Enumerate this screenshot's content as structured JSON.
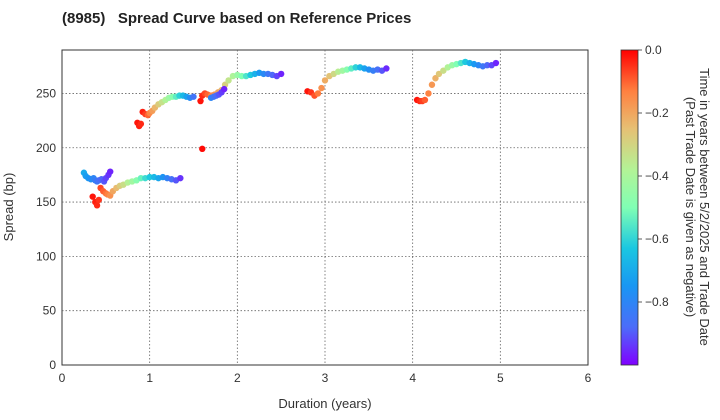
{
  "chart_data": {
    "type": "scatter",
    "title": "(8985)   Spread Curve based on Reference Prices",
    "xlabel": "Duration (years)",
    "ylabel": "Spread (bp)",
    "xlim": [
      0,
      6
    ],
    "ylim": [
      0,
      290
    ],
    "xticks": [
      "0",
      "1",
      "2",
      "3",
      "4",
      "5",
      "6"
    ],
    "yticks": [
      "0",
      "50",
      "100",
      "150",
      "200",
      "250"
    ],
    "grid": true,
    "colorbar": {
      "label_line1": "Time in years between 5/2/2025 and Trade Date",
      "label_line2": "(Past Trade Date is given as negative)",
      "range": [
        -1.0,
        0.0
      ],
      "ticks": [
        "0.0",
        "−0.2",
        "−0.4",
        "−0.6",
        "−0.8"
      ],
      "colormap": "rainbow"
    },
    "clusters": [
      {
        "x": [
          0.25,
          0.27,
          0.3,
          0.33,
          0.36,
          0.38,
          0.4,
          0.42,
          0.45,
          0.48,
          0.5,
          0.53,
          0.55
        ],
        "y": [
          177,
          174,
          172,
          171,
          172,
          170,
          169,
          170,
          171,
          169,
          172,
          175,
          178
        ],
        "c": [
          -0.7,
          -0.73,
          -0.75,
          -0.77,
          -0.8,
          -0.82,
          -0.84,
          -0.86,
          -0.88,
          -0.9,
          -0.92,
          -0.94,
          -0.96
        ]
      },
      {
        "x": [
          0.35,
          0.38,
          0.4,
          0.42,
          0.44,
          0.47,
          0.5,
          0.52,
          0.55,
          0.58,
          0.62,
          0.66,
          0.7,
          0.75,
          0.8,
          0.85,
          0.9,
          0.95,
          1.0,
          1.05,
          1.1,
          1.15,
          1.2,
          1.25,
          1.3,
          1.35
        ],
        "y": [
          155,
          150,
          147,
          152,
          163,
          160,
          158,
          157,
          156,
          160,
          163,
          165,
          166,
          168,
          169,
          170,
          172,
          172,
          173,
          173,
          172,
          173,
          172,
          171,
          170,
          172
        ],
        "c": [
          -0.02,
          -0.03,
          -0.04,
          -0.05,
          -0.07,
          -0.09,
          -0.11,
          -0.13,
          -0.16,
          -0.2,
          -0.24,
          -0.28,
          -0.32,
          -0.37,
          -0.42,
          -0.48,
          -0.53,
          -0.58,
          -0.62,
          -0.66,
          -0.71,
          -0.76,
          -0.81,
          -0.86,
          -0.9,
          -0.94
        ]
      },
      {
        "x": [
          0.86,
          0.88,
          0.9
        ],
        "y": [
          223,
          220,
          222
        ],
        "c": [
          -0.02,
          -0.03,
          -0.04
        ]
      },
      {
        "x": [
          0.92,
          0.95,
          0.98,
          1.0,
          1.03,
          1.06,
          1.1,
          1.14,
          1.18,
          1.22,
          1.26,
          1.3,
          1.34,
          1.38,
          1.42,
          1.46,
          1.5
        ],
        "y": [
          233,
          231,
          230,
          232,
          234,
          237,
          240,
          242,
          244,
          246,
          247,
          247,
          248,
          248,
          247,
          246,
          247
        ],
        "c": [
          -0.03,
          -0.06,
          -0.1,
          -0.14,
          -0.18,
          -0.23,
          -0.28,
          -0.33,
          -0.38,
          -0.43,
          -0.48,
          -0.54,
          -0.6,
          -0.66,
          -0.72,
          -0.78,
          -0.85
        ]
      },
      {
        "x": [
          1.58,
          1.6,
          1.63,
          1.66,
          1.7,
          1.74,
          1.78,
          1.82,
          1.86,
          1.9,
          1.95,
          2.0,
          2.05,
          2.1,
          2.15,
          2.2,
          2.25,
          2.3,
          2.35,
          2.4,
          2.45,
          2.5
        ],
        "y": [
          243,
          248,
          250,
          249,
          248,
          249,
          251,
          253,
          258,
          262,
          266,
          267,
          266,
          266,
          267,
          268,
          269,
          268,
          268,
          267,
          266,
          268
        ],
        "c": [
          -0.02,
          -0.04,
          -0.07,
          -0.1,
          -0.13,
          -0.16,
          -0.2,
          -0.24,
          -0.29,
          -0.34,
          -0.39,
          -0.44,
          -0.5,
          -0.56,
          -0.62,
          -0.68,
          -0.74,
          -0.79,
          -0.84,
          -0.88,
          -0.92,
          -0.96
        ]
      },
      {
        "x": [
          1.6
        ],
        "y": [
          199
        ],
        "c": [
          -0.01
        ]
      },
      {
        "x": [
          1.7,
          1.73,
          1.76,
          1.79,
          1.82,
          1.85
        ],
        "y": [
          246,
          247,
          248,
          249,
          251,
          254
        ],
        "c": [
          -0.8,
          -0.84,
          -0.87,
          -0.9,
          -0.93,
          -0.96
        ]
      },
      {
        "x": [
          2.8,
          2.84,
          2.88,
          2.92,
          2.96,
          3.0,
          3.05,
          3.1,
          3.15,
          3.2,
          3.25,
          3.3,
          3.35,
          3.4,
          3.45,
          3.5,
          3.55,
          3.6,
          3.65,
          3.7
        ],
        "y": [
          252,
          251,
          248,
          250,
          255,
          262,
          266,
          268,
          270,
          271,
          272,
          273,
          274,
          274,
          273,
          272,
          271,
          272,
          271,
          273
        ],
        "c": [
          -0.02,
          -0.05,
          -0.08,
          -0.12,
          -0.16,
          -0.21,
          -0.26,
          -0.31,
          -0.36,
          -0.42,
          -0.48,
          -0.54,
          -0.6,
          -0.66,
          -0.72,
          -0.77,
          -0.82,
          -0.86,
          -0.9,
          -0.95
        ]
      },
      {
        "x": [
          4.05,
          4.08,
          4.11,
          4.14,
          4.18,
          4.22,
          4.26,
          4.3,
          4.35,
          4.4,
          4.45,
          4.5,
          4.55,
          4.6,
          4.65,
          4.7,
          4.75,
          4.8,
          4.85,
          4.9,
          4.95
        ],
        "y": [
          244,
          243,
          243,
          244,
          250,
          258,
          264,
          268,
          271,
          274,
          276,
          277,
          278,
          279,
          278,
          277,
          276,
          275,
          276,
          276,
          278
        ],
        "c": [
          -0.02,
          -0.04,
          -0.06,
          -0.09,
          -0.13,
          -0.17,
          -0.22,
          -0.27,
          -0.32,
          -0.38,
          -0.44,
          -0.5,
          -0.56,
          -0.62,
          -0.68,
          -0.74,
          -0.79,
          -0.84,
          -0.88,
          -0.92,
          -0.96
        ]
      }
    ]
  }
}
